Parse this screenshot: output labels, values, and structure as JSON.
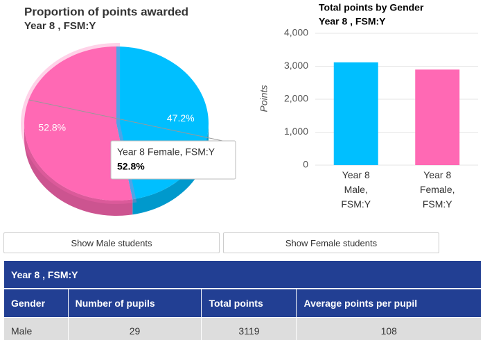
{
  "chart_data": [
    {
      "type": "pie",
      "title": "Proportion of points awarded",
      "subtitle": "Year 8 , FSM:Y",
      "categories": [
        null,
        "Year 8 Female, FSM:Y"
      ],
      "values": [
        47.2,
        52.8
      ],
      "value_labels": [
        "47.2%",
        "52.8%"
      ],
      "colors": [
        "#00bfff",
        "#ff69b4"
      ],
      "tooltip_index": 1
    },
    {
      "type": "bar",
      "title": "Total points by Gender",
      "subtitle": "Year 8 , FSM:Y",
      "y_label": "Points",
      "categories": [
        "Year 8 Male, FSM:Y",
        "Year 8 Female, FSM:Y"
      ],
      "values": [
        3119,
        2900
      ],
      "colors": [
        "#00bfff",
        "#ff69b4"
      ],
      "ylim": [
        0,
        4000
      ],
      "yticks": [
        0,
        {
          "value": 1000,
          "label": "1,000"
        },
        {
          "value": 2000,
          "label": "2,000"
        },
        {
          "value": 3000,
          "label": "3,000"
        },
        {
          "value": 4000,
          "label": "4,000"
        }
      ],
      "grid": true
    }
  ],
  "buttons": [
    "Show Male students",
    "Show Female students"
  ],
  "table": {
    "title": "Year 8 , FSM:Y",
    "headers": [
      "Gender",
      "Number of pupils",
      "Total points",
      "Average points per pupil"
    ],
    "rows": [
      [
        "Male",
        29,
        3119,
        108
      ]
    ]
  }
}
